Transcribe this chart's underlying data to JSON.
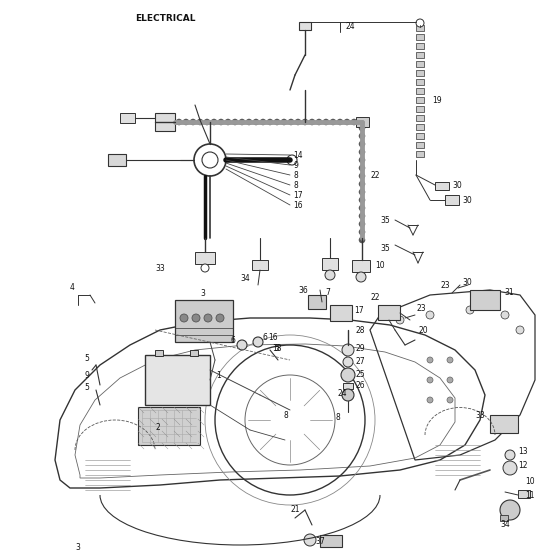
{
  "title": "ELECTRICAL",
  "bg_color": "#ffffff",
  "line_color": "#333333",
  "text_color": "#111111",
  "fig_width": 5.6,
  "fig_height": 5.6,
  "dpi": 100
}
